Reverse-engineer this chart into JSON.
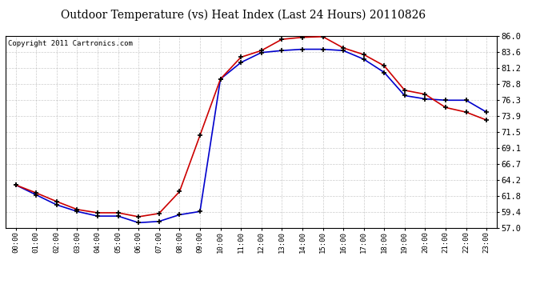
{
  "title": "Outdoor Temperature (vs) Heat Index (Last 24 Hours) 20110826",
  "copyright": "Copyright 2011 Cartronics.com",
  "x_labels": [
    "00:00",
    "01:00",
    "02:00",
    "03:00",
    "04:00",
    "05:00",
    "06:00",
    "07:00",
    "08:00",
    "09:00",
    "10:00",
    "11:00",
    "12:00",
    "13:00",
    "14:00",
    "15:00",
    "16:00",
    "17:00",
    "18:00",
    "19:00",
    "20:00",
    "21:00",
    "22:00",
    "23:00"
  ],
  "y_ticks": [
    57.0,
    59.4,
    61.8,
    64.2,
    66.7,
    69.1,
    71.5,
    73.9,
    76.3,
    78.8,
    81.2,
    83.6,
    86.0
  ],
  "ylim": [
    57.0,
    86.0
  ],
  "temp_red": [
    63.5,
    62.3,
    61.0,
    59.8,
    59.3,
    59.3,
    58.7,
    59.2,
    62.5,
    71.0,
    79.5,
    82.8,
    83.8,
    85.5,
    85.8,
    85.9,
    84.2,
    83.2,
    81.5,
    77.8,
    77.2,
    75.2,
    74.5,
    73.3
  ],
  "temp_blue": [
    63.5,
    62.0,
    60.5,
    59.5,
    58.8,
    58.8,
    57.8,
    58.0,
    59.0,
    59.5,
    79.5,
    82.0,
    83.5,
    83.8,
    84.0,
    84.0,
    83.8,
    82.5,
    80.5,
    77.0,
    76.5,
    76.3,
    76.3,
    74.5
  ],
  "red_color": "#cc0000",
  "blue_color": "#0000cc",
  "bg_color": "#ffffff",
  "grid_color": "#aaaaaa",
  "title_fontsize": 10,
  "copyright_fontsize": 6.5,
  "tick_fontsize": 7.5,
  "xtick_fontsize": 6.5
}
